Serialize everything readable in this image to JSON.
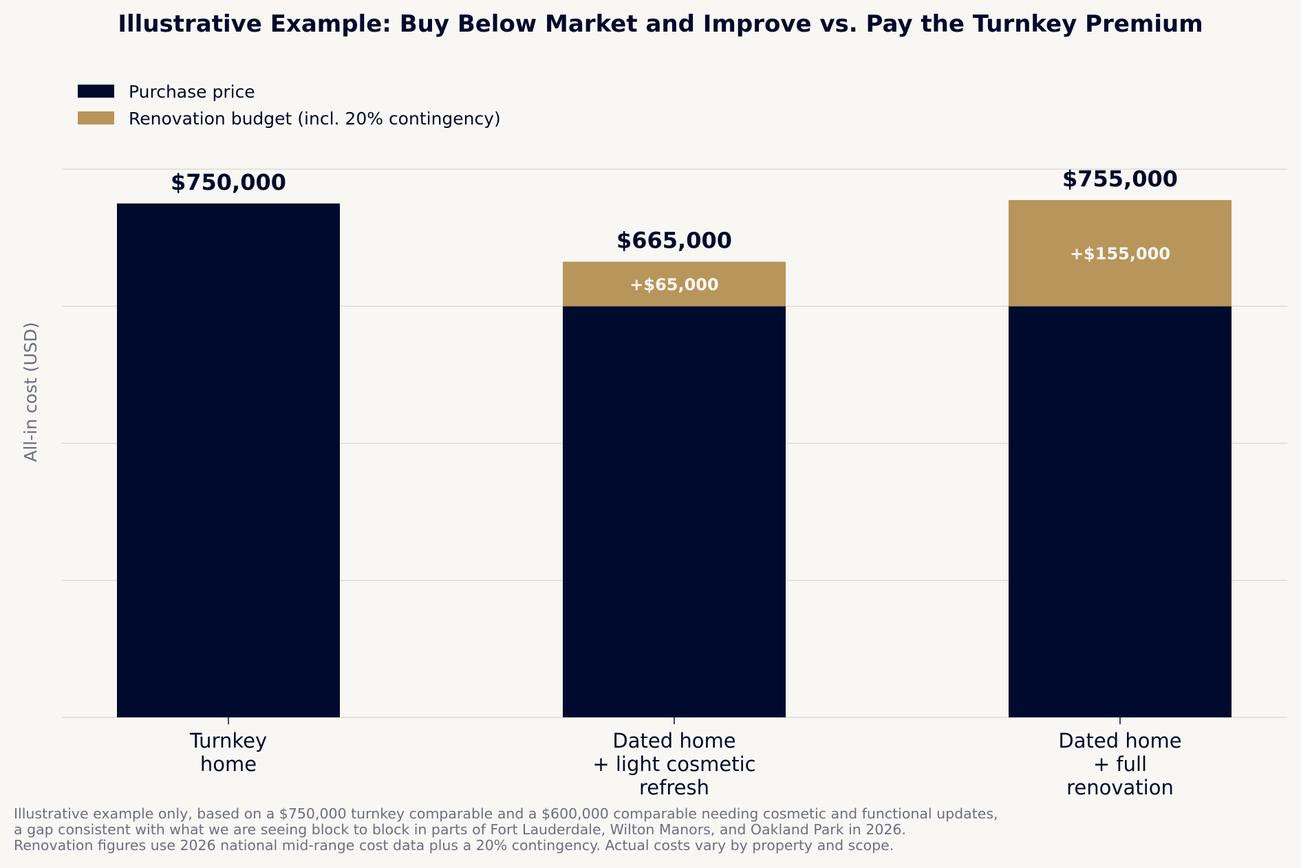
{
  "chart_data": {
    "type": "bar",
    "stacked": true,
    "title": "Illustrative Example: Buy Below Market and Improve vs. Pay the Turnkey Premium",
    "ylabel": "All-in cost (USD)",
    "xlabel": "",
    "ylim": [
      0,
      800000
    ],
    "grid": true,
    "legend_placement": "top-left",
    "categories": [
      "Turnkey\nhome",
      "Dated home\n+ light cosmetic\nrefresh",
      "Dated home\n+ full\nrenovation"
    ],
    "series": [
      {
        "name": "Purchase price",
        "values": [
          750000,
          600000,
          600000
        ],
        "color": "#000a2c"
      },
      {
        "name": "Renovation budget (incl. 20% contingency)",
        "values": [
          0,
          65000,
          155000
        ],
        "color": "#b8955a"
      }
    ],
    "total_labels": [
      "$750,000",
      "$665,000",
      "$755,000"
    ],
    "segment_labels": [
      "",
      "+$65,000",
      "+$155,000"
    ]
  },
  "footnote": [
    "Illustrative example only, based on a $750,000 turnkey comparable and a $600,000 comparable needing cosmetic and functional updates,",
    "a gap consistent with what we are seeing block to block in parts of Fort Lauderdale, Wilton Manors, and Oakland Park in 2026.",
    "Renovation figures use 2026 national mid-range cost data plus a 20% contingency. Actual costs vary by property and scope."
  ]
}
